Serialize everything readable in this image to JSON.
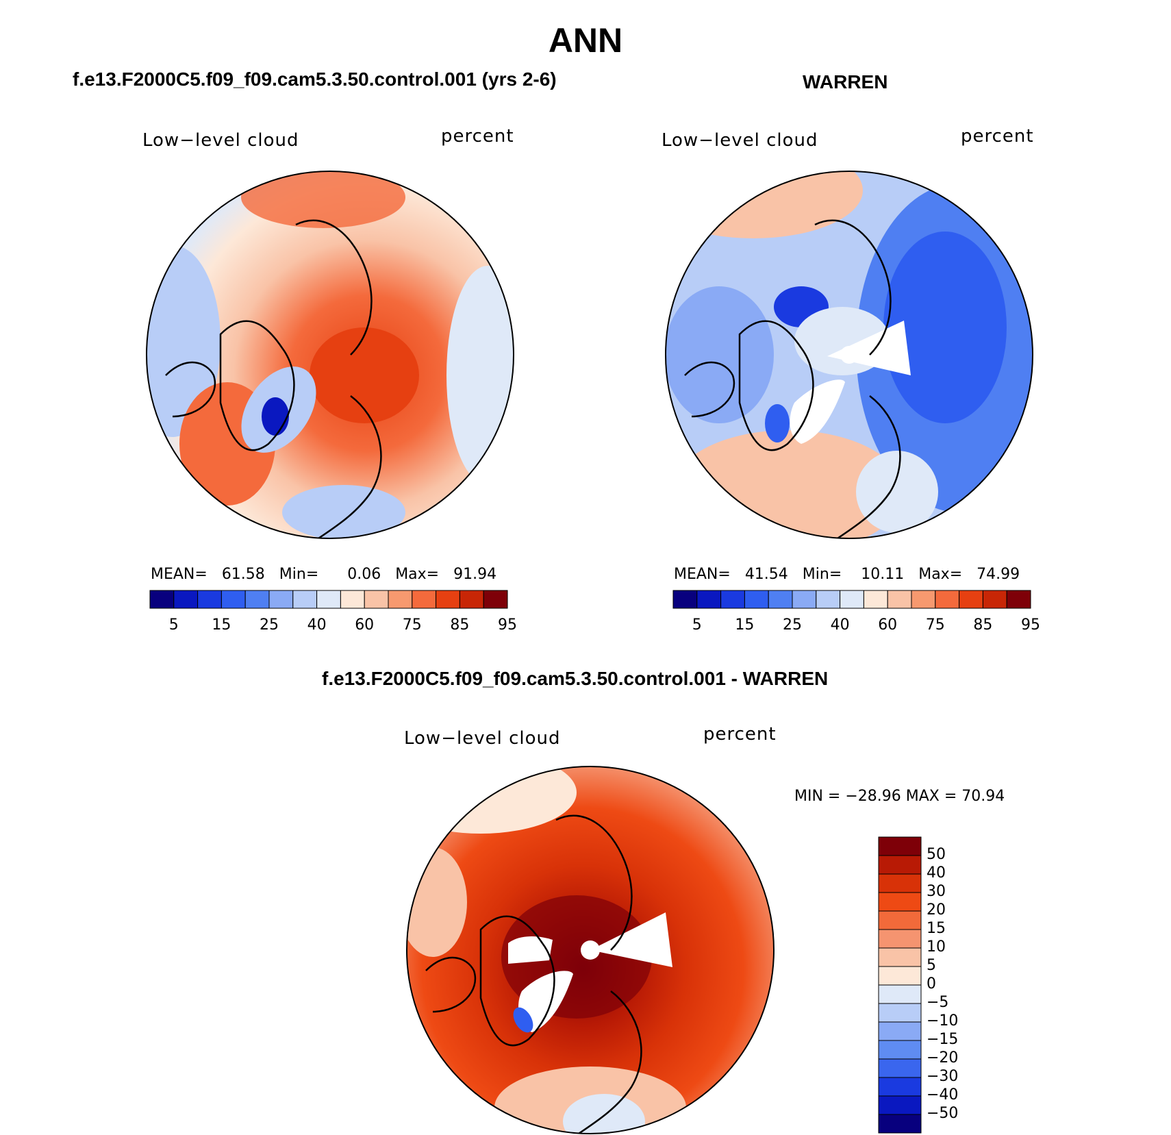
{
  "title": "ANN",
  "panels": [
    {
      "title": "f.e13.F2000C5.f09_f09.cam5.3.50.control.001 (yrs 2-6)",
      "variable": "Low−level cloud",
      "units": "percent",
      "stats": {
        "mean_label": "MEAN=",
        "mean": "61.58",
        "min_label": "Min=",
        "min": "0.06",
        "max_label": "Max=",
        "max": "91.94"
      },
      "colorbar_ticks": [
        "5",
        "15",
        "25",
        "40",
        "60",
        "75",
        "85",
        "95"
      ]
    },
    {
      "title": "WARREN",
      "variable": "Low−level cloud",
      "units": "percent",
      "stats": {
        "mean_label": "MEAN=",
        "mean": "41.54",
        "min_label": "Min=",
        "min": "10.11",
        "max_label": "Max=",
        "max": "74.99"
      },
      "colorbar_ticks": [
        "5",
        "15",
        "25",
        "40",
        "60",
        "75",
        "85",
        "95"
      ]
    }
  ],
  "difference": {
    "title": "f.e13.F2000C5.f09_f09.cam5.3.50.control.001 - WARREN",
    "variable": "Low−level cloud",
    "units": "percent",
    "minmax": "MIN = −28.96 MAX =   70.94",
    "colorbar_ticks": [
      "50",
      "40",
      "30",
      "20",
      "15",
      "10",
      "5",
      "0",
      "−5",
      "−10",
      "−15",
      "−20",
      "−30",
      "−40",
      "−50"
    ]
  },
  "colors": {
    "abs_scale": [
      "#08007e",
      "#0a18c0",
      "#1a3ae0",
      "#2f5ef0",
      "#4f7ff2",
      "#8aaaf5",
      "#b8cdf7",
      "#dfe9f8",
      "#fde8d8",
      "#f9c3a7",
      "#f7996f",
      "#f46a3c",
      "#e64011",
      "#c82606",
      "#7e0008"
    ],
    "diff_scale": [
      "#7e0008",
      "#b81a05",
      "#d83208",
      "#ee4a14",
      "#f26a3a",
      "#f59470",
      "#f9c3a7",
      "#fde8d8",
      "#dfe9f8",
      "#b8cdf7",
      "#8aaaf5",
      "#5f8cf2",
      "#3a66ee",
      "#1a3ae0",
      "#0a18c0",
      "#08007e"
    ]
  }
}
